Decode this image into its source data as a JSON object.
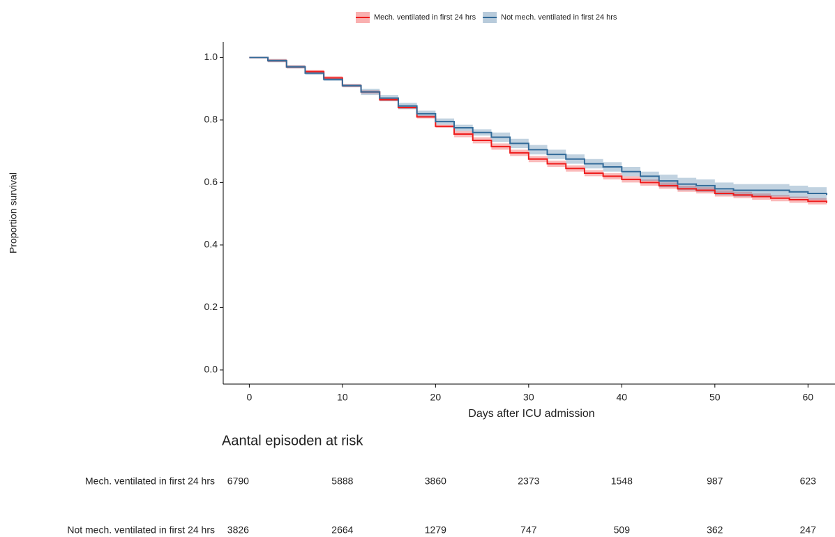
{
  "chart_data": {
    "type": "line",
    "step": true,
    "xlabel": "Days after ICU admission",
    "ylabel": "Proportion survival",
    "x": [
      0,
      2,
      4,
      6,
      8,
      10,
      12,
      14,
      16,
      18,
      20,
      22,
      24,
      26,
      28,
      30,
      32,
      34,
      36,
      38,
      40,
      42,
      44,
      46,
      48,
      50,
      52,
      54,
      56,
      58,
      60,
      62
    ],
    "series": [
      {
        "name": "Mech. ventilated in first 24 hrs",
        "color": "#ee1c1c",
        "values": [
          1.0,
          0.99,
          0.97,
          0.955,
          0.935,
          0.91,
          0.89,
          0.865,
          0.84,
          0.81,
          0.78,
          0.755,
          0.735,
          0.715,
          0.695,
          0.675,
          0.66,
          0.645,
          0.63,
          0.62,
          0.61,
          0.6,
          0.59,
          0.58,
          0.575,
          0.565,
          0.56,
          0.555,
          0.55,
          0.545,
          0.54,
          0.535
        ],
        "lower": [
          1.0,
          0.985,
          0.965,
          0.95,
          0.93,
          0.905,
          0.885,
          0.86,
          0.835,
          0.805,
          0.775,
          0.745,
          0.725,
          0.705,
          0.685,
          0.665,
          0.65,
          0.635,
          0.62,
          0.61,
          0.6,
          0.59,
          0.58,
          0.57,
          0.565,
          0.555,
          0.55,
          0.545,
          0.54,
          0.535,
          0.53,
          0.525
        ],
        "upper": [
          1.0,
          0.995,
          0.975,
          0.96,
          0.94,
          0.915,
          0.895,
          0.87,
          0.845,
          0.815,
          0.785,
          0.765,
          0.745,
          0.725,
          0.705,
          0.685,
          0.67,
          0.655,
          0.64,
          0.63,
          0.62,
          0.61,
          0.6,
          0.59,
          0.585,
          0.575,
          0.57,
          0.565,
          0.56,
          0.555,
          0.55,
          0.545
        ],
        "at_risk": [
          6790,
          5888,
          3860,
          2373,
          1548,
          987,
          623
        ]
      },
      {
        "name": "Not mech. ventilated in first 24 hrs",
        "color": "#336b99",
        "values": [
          1.0,
          0.99,
          0.97,
          0.95,
          0.93,
          0.91,
          0.89,
          0.87,
          0.845,
          0.82,
          0.795,
          0.775,
          0.76,
          0.745,
          0.725,
          0.705,
          0.69,
          0.675,
          0.66,
          0.65,
          0.635,
          0.62,
          0.605,
          0.595,
          0.59,
          0.58,
          0.575,
          0.575,
          0.575,
          0.57,
          0.565,
          0.56
        ],
        "lower": [
          1.0,
          0.985,
          0.965,
          0.945,
          0.925,
          0.905,
          0.88,
          0.86,
          0.835,
          0.81,
          0.785,
          0.765,
          0.75,
          0.73,
          0.71,
          0.69,
          0.675,
          0.66,
          0.645,
          0.635,
          0.62,
          0.605,
          0.585,
          0.575,
          0.57,
          0.56,
          0.555,
          0.555,
          0.555,
          0.55,
          0.545,
          0.54
        ],
        "upper": [
          1.0,
          0.995,
          0.975,
          0.955,
          0.935,
          0.915,
          0.9,
          0.88,
          0.855,
          0.83,
          0.805,
          0.785,
          0.77,
          0.76,
          0.74,
          0.72,
          0.705,
          0.69,
          0.675,
          0.665,
          0.65,
          0.635,
          0.625,
          0.615,
          0.61,
          0.6,
          0.595,
          0.595,
          0.595,
          0.59,
          0.585,
          0.58
        ],
        "at_risk": [
          3826,
          2664,
          1279,
          747,
          509,
          362,
          247
        ]
      }
    ],
    "xlim": [
      -2.8,
      62.9
    ],
    "ylim": [
      -0.045,
      1.05
    ],
    "xticks": [
      0,
      10,
      20,
      30,
      40,
      50,
      60
    ],
    "yticks": [
      {
        "value": 0,
        "label": "0.0"
      },
      0.2,
      0.4,
      0.6,
      0.8,
      {
        "value": 1,
        "label": "1.0"
      }
    ],
    "legend": "top",
    "risk_table_title": "Aantal episoden at risk"
  }
}
